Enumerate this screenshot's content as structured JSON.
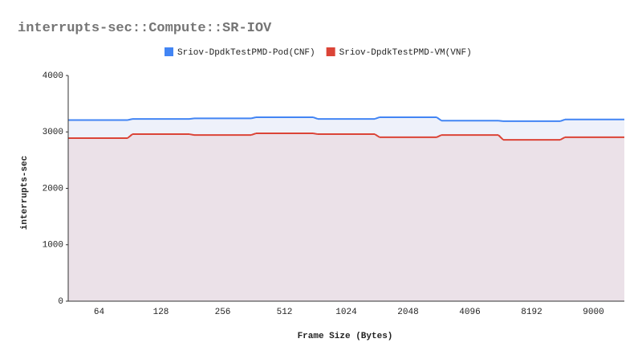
{
  "chart_data": {
    "type": "stepped-area",
    "title": "interrupts-sec::Compute::SR-IOV",
    "x_label": "Frame Size (Bytes)",
    "y_label": "interrupts-sec",
    "categories": [
      "64",
      "128",
      "256",
      "512",
      "1024",
      "2048",
      "4096",
      "8192",
      "9000"
    ],
    "series": [
      {
        "name": "Sriov-DpdkTestPMD-Pod(CNF)",
        "color": "#4285f4",
        "fill": "#eef1fa",
        "values": [
          3210,
          3230,
          3240,
          3260,
          3230,
          3260,
          3200,
          3190,
          3220
        ]
      },
      {
        "name": "Sriov-DpdkTestPMD-VM(VNF)",
        "color": "#db4437",
        "fill": "#ebe1e8",
        "values": [
          2890,
          2960,
          2945,
          2975,
          2960,
          2905,
          2945,
          2860,
          2905
        ]
      }
    ],
    "ylim": [
      0,
      4000
    ],
    "yticks": [
      0,
      1000,
      2000,
      3000,
      4000
    ],
    "legend": "top",
    "grid": false
  }
}
